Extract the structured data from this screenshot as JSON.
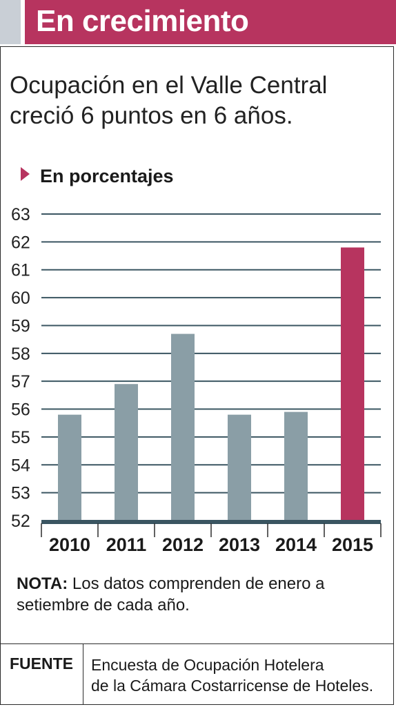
{
  "header": {
    "title": "En crecimiento"
  },
  "headline": "Ocupación en el Valle Central creció 6 puntos en 6 años.",
  "subhead": "En porcentajes",
  "chart_data": {
    "type": "bar",
    "categories": [
      "2010",
      "2011",
      "2012",
      "2013",
      "2014",
      "2015"
    ],
    "values": [
      55.8,
      56.9,
      58.7,
      55.8,
      55.9,
      61.8
    ],
    "ylim": [
      52,
      63
    ],
    "yticks": [
      "52",
      "53",
      "54",
      "55",
      "56",
      "57",
      "58",
      "59",
      "60",
      "61",
      "62",
      "63"
    ],
    "grid": true,
    "colors": {
      "default": "#8a9ea6",
      "highlight": "#b7345f",
      "grid": "#3a5561"
    },
    "highlight_index": 5
  },
  "note": {
    "label": "NOTA:",
    "text": " Los datos comprenden de enero a setiembre de cada año."
  },
  "source": {
    "label": "FUENTE",
    "lines": [
      "Encuesta de Ocupación Hotelera",
      "de la Cámara Costarricense de Hoteles."
    ]
  }
}
